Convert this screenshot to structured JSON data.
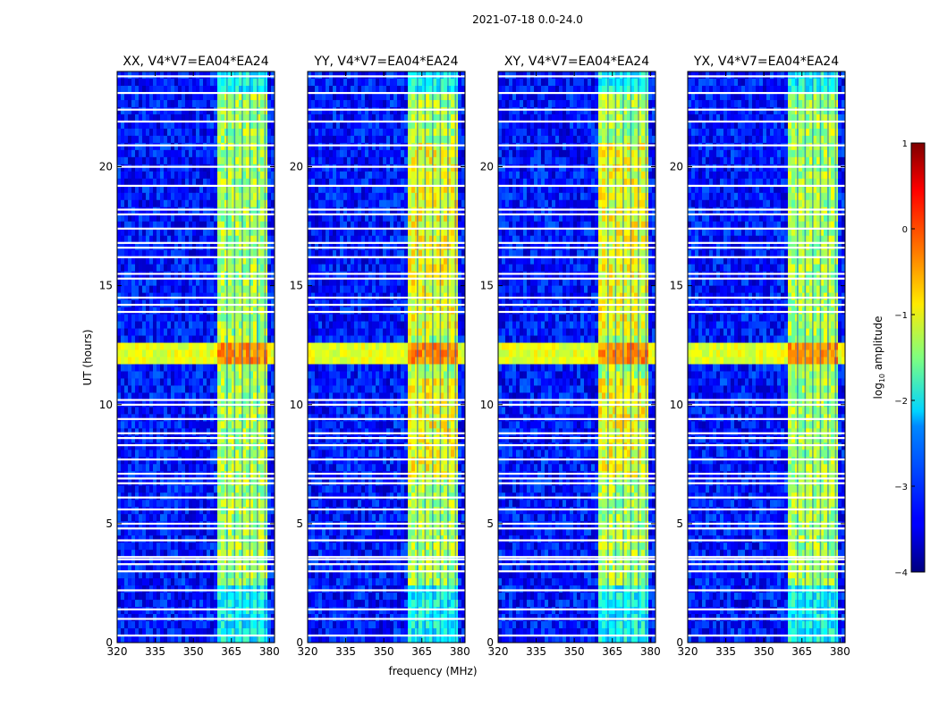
{
  "figure": {
    "suptitle": "2021-07-18 0.0-24.0"
  },
  "chart_data": {
    "type": "heatmap",
    "xlabel": "frequency (MHz)",
    "ylabel": "UT (hours)",
    "xlim": [
      320,
      382
    ],
    "ylim": [
      0,
      24
    ],
    "xticks": [
      320,
      335,
      350,
      365,
      380
    ],
    "yticks": [
      0,
      5,
      10,
      15,
      20
    ],
    "xtick_labels": [
      "320",
      "335",
      "350",
      "365",
      "380"
    ],
    "ytick_labels": [
      "0",
      "5",
      "10",
      "15",
      "20"
    ],
    "panels": [
      {
        "title": "XX, V4*V7=EA04*EA24"
      },
      {
        "title": "YY, V4*V7=EA04*EA24"
      },
      {
        "title": "XY, V4*V7=EA04*EA24"
      },
      {
        "title": "YX, V4*V7=EA04*EA24"
      }
    ],
    "colorbar": {
      "label": "log10 amplitude",
      "label_main": "log",
      "label_sub": "10",
      "label_rest": " amplitude",
      "range": [
        -4,
        1
      ],
      "ticks": [
        1,
        0,
        -1,
        -2,
        -3,
        -4
      ],
      "tick_labels": [
        "1",
        "0",
        "−1",
        "−2",
        "−3",
        "−4"
      ],
      "colormap": "jet"
    },
    "features": {
      "bright_band_mhz": [
        360,
        379
      ],
      "bright_band_level": -1.3,
      "background_level": -3.3,
      "strong_event_ut": [
        11.8,
        12.7
      ],
      "strong_event_level": -1.0,
      "band_during_event_level": 0.0,
      "gap_rows_ut": [
        0.3,
        1.0,
        1.4,
        2.2,
        3.0,
        3.3,
        3.5,
        3.6,
        4.3,
        4.8,
        5.0,
        5.6,
        6.1,
        6.7,
        6.9,
        7.1,
        7.7,
        8.3,
        8.6,
        8.8,
        9.4,
        10.0,
        10.2,
        13.9,
        14.2,
        14.5,
        15.3,
        15.5,
        16.2,
        16.6,
        16.8,
        17.4,
        18.0,
        18.2,
        19.2,
        20.0,
        20.9,
        21.9,
        22.4,
        23.1,
        23.8
      ],
      "band_channels_mhz": [
        363,
        366,
        369,
        372,
        375,
        378
      ]
    },
    "colors": {
      "background_blue": "#0a2acc",
      "band_color": "#3ef2a0",
      "event_color": "#a6ff55",
      "peak_color": "#ff9a00",
      "gap_color": "#ffffff"
    }
  }
}
